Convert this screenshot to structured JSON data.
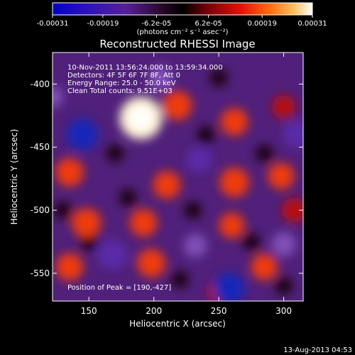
{
  "chart_data": {
    "type": "heatmap",
    "title": "Reconstructed RHESSI Image",
    "xlabel": "Heliocentric X (arcsec)",
    "ylabel": "Heliocentric Y (arcsec)",
    "xlim": [
      122,
      315
    ],
    "ylim": [
      -572,
      -375
    ],
    "x_ticks": [
      150,
      200,
      250,
      300
    ],
    "y_ticks": [
      -550,
      -500,
      -450,
      -400
    ],
    "colorbar": {
      "ticks": [
        "-0.00031",
        "-0.00019",
        "-6.2e-05",
        "6.2e-05",
        "0.00019",
        "0.00031"
      ],
      "tick_values": [
        -0.00031,
        -0.00019,
        -6.2e-05,
        6.2e-05,
        0.00019,
        0.00031
      ],
      "range": [
        -0.00031,
        0.00031
      ],
      "unit_label": "(photons cm⁻² s⁻¹ asec⁻²)",
      "colormap": "blue-purple-red-yellow-white"
    },
    "annotations": [
      "10-Nov-2011 13:56:24.000 to 13:59:34.000",
      "Detectors: 4F 5F 6F 7F 8F, Att 0",
      "Energy Range: 25.0 - 50.0 keV",
      "Clean     Total counts: 9.51E+03"
    ],
    "peak_label": "Position of Peak = [190,-427]",
    "peak": {
      "x": 190,
      "y": -427
    },
    "sources": [
      {
        "x": 190,
        "y": -427,
        "value": 0.00031
      },
      {
        "x": 218,
        "y": -417,
        "value": 0.00018
      },
      {
        "x": 262,
        "y": -430,
        "value": 0.00016
      },
      {
        "x": 300,
        "y": -418,
        "value": 0.00012
      },
      {
        "x": 135,
        "y": -470,
        "value": 0.00017
      },
      {
        "x": 210,
        "y": -480,
        "value": 0.00016
      },
      {
        "x": 262,
        "y": -478,
        "value": 0.00018
      },
      {
        "x": 298,
        "y": -473,
        "value": 0.00015
      },
      {
        "x": 148,
        "y": -510,
        "value": 0.00018
      },
      {
        "x": 192,
        "y": -510,
        "value": 0.00016
      },
      {
        "x": 260,
        "y": -512,
        "value": 0.00014
      },
      {
        "x": 308,
        "y": -500,
        "value": 0.00013
      },
      {
        "x": 135,
        "y": -545,
        "value": 0.00016
      },
      {
        "x": 198,
        "y": -542,
        "value": 0.00017
      },
      {
        "x": 285,
        "y": -545,
        "value": 0.00015
      },
      {
        "x": 250,
        "y": -565,
        "value": 0.00011
      },
      {
        "x": 145,
        "y": -440,
        "value": -0.0002
      },
      {
        "x": 205,
        "y": -395,
        "value": -0.00012
      },
      {
        "x": 235,
        "y": -460,
        "value": -0.00014
      },
      {
        "x": 310,
        "y": -440,
        "value": -0.00016
      },
      {
        "x": 168,
        "y": -535,
        "value": -0.00018
      },
      {
        "x": 258,
        "y": -562,
        "value": -0.0002
      },
      {
        "x": 232,
        "y": -528,
        "value": -0.00012
      },
      {
        "x": 300,
        "y": -527,
        "value": -0.00013
      },
      {
        "x": 122,
        "y": -410,
        "value": -0.0001
      }
    ]
  },
  "footer": {
    "date": "13-Aug-2013 04:53"
  }
}
